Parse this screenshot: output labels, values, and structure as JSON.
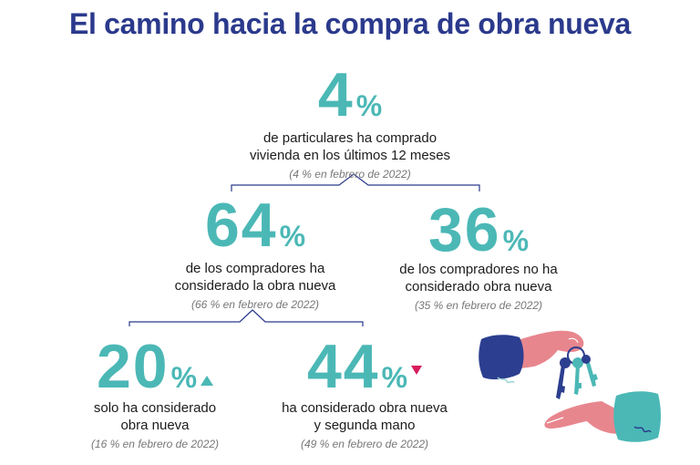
{
  "title": "El camino hacia la compra de obra nueva",
  "nodes": {
    "top": {
      "value": "4",
      "unit": "%",
      "line1": "de particulares ha comprado",
      "line2": "vivienda en los últimos 12 meses",
      "ref": "(4 % en febrero de 2022)"
    },
    "considered": {
      "value": "64",
      "unit": "%",
      "line1": "de los compradores ha",
      "line2": "considerado la obra nueva",
      "ref": "(66 % en febrero de 2022)"
    },
    "not_considered": {
      "value": "36",
      "unit": "%",
      "line1": "de los compradores no ha",
      "line2": "considerado obra nueva",
      "ref": "(35 % en febrero de 2022)"
    },
    "only_new": {
      "value": "20",
      "unit": "%",
      "trend": "up",
      "line1": "solo ha considerado",
      "line2": "obra nueva",
      "ref": "(16 % en febrero de 2022)"
    },
    "new_and_used": {
      "value": "44",
      "unit": "%",
      "trend": "down",
      "line1": "ha considerado obra nueva",
      "line2": "y segunda mano",
      "ref": "(49 % en febrero de 2022)"
    }
  },
  "colors": {
    "title": "#2b3a8c",
    "accent": "#4bb8b6",
    "down": "#d81b5e",
    "line": "#2b3a8c",
    "sleeve_dark": "#2c3e8f",
    "sleeve_teal": "#4bb8b6",
    "skin": "#e8868e"
  },
  "illustration": "hands-passing-keys-icon"
}
